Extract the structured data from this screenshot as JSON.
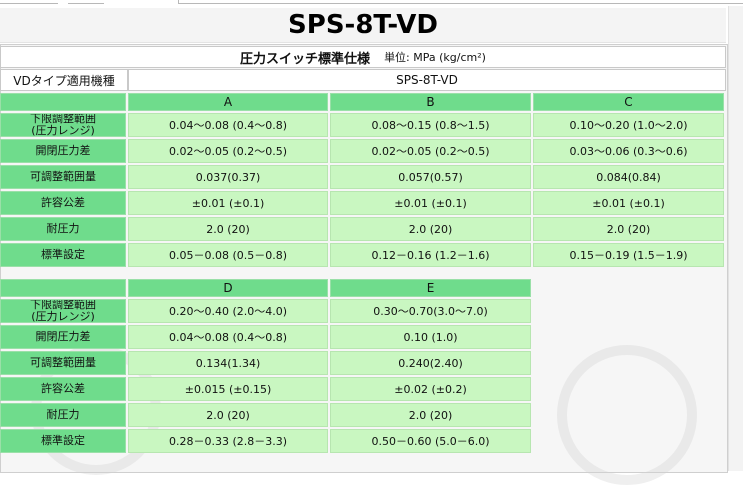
{
  "page": {
    "title": "SPS-8T-VD"
  },
  "table": {
    "caption": "圧力スイッチ標準仕様",
    "unit": "単位: MPa (kg/cm²)",
    "type_label": "VDタイプ適用機種",
    "model": "SPS-8T-VD",
    "row_labels": [
      [
        "下限調整範囲",
        "(圧力レンジ)"
      ],
      [
        "開閉圧力差",
        ""
      ],
      [
        "可調整範囲量",
        ""
      ],
      [
        "許容公差",
        ""
      ],
      [
        "耐圧力",
        ""
      ],
      [
        "標準設定",
        ""
      ]
    ],
    "groups": [
      {
        "columns": [
          "A",
          "B",
          "C"
        ],
        "rows": [
          [
            "0.04～0.08 (0.4～0.8)",
            "0.08～0.15 (0.8～1.5)",
            "0.10～0.20 (1.0～2.0)"
          ],
          [
            "0.02～0.05 (0.2～0.5)",
            "0.02～0.05 (0.2～0.5)",
            "0.03～0.06 (0.3～0.6)"
          ],
          [
            "0.037(0.37)",
            "0.057(0.57)",
            "0.084(0.84)"
          ],
          [
            "±0.01 (±0.1)",
            "±0.01 (±0.1)",
            "±0.01 (±0.1)"
          ],
          [
            "2.0 (20)",
            "2.0 (20)",
            "2.0 (20)"
          ],
          [
            "0.05－0.08 (0.5－0.8)",
            "0.12－0.16 (1.2－1.6)",
            "0.15－0.19 (1.5－1.9)"
          ]
        ]
      },
      {
        "columns": [
          "D",
          "E"
        ],
        "rows": [
          [
            "0.20～0.40 (2.0～4.0)",
            "0.30～0.70(3.0～7.0)"
          ],
          [
            "0.04～0.08 (0.4～0.8)",
            "0.10 (1.0)"
          ],
          [
            "0.134(1.34)",
            "0.240(2.40)"
          ],
          [
            "±0.015 (±0.15)",
            "±0.02 (±0.2)"
          ],
          [
            "2.0 (20)",
            "2.0 (20)"
          ],
          [
            "0.28－0.33 (2.8－3.3)",
            "0.50－0.60 (5.0－6.0)"
          ]
        ]
      }
    ]
  },
  "colors": {
    "header_green": "#6fdc8c",
    "value_green": "#c9f7c1"
  }
}
